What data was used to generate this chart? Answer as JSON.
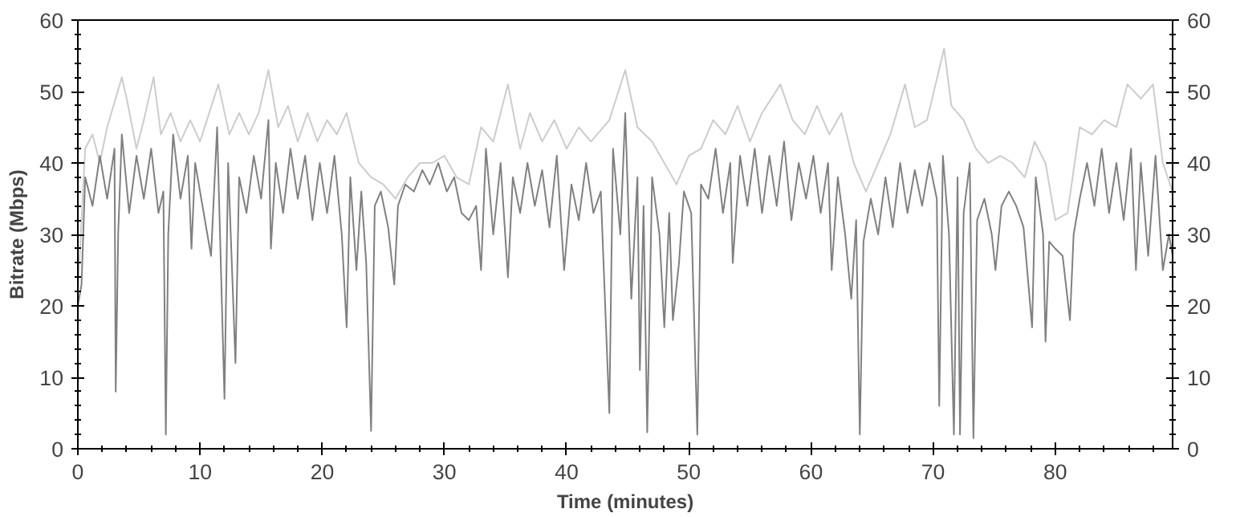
{
  "chart_data": {
    "type": "line",
    "xlabel": "Time (minutes)",
    "ylabel": "Bitrate (Mbps)",
    "xlim": [
      0,
      89.6
    ],
    "ylim": [
      0,
      60
    ],
    "xticks": [
      0,
      10,
      20,
      30,
      40,
      50,
      60,
      70,
      80
    ],
    "yticks": [
      0,
      10,
      20,
      30,
      40,
      50,
      60
    ],
    "y2lim": [
      0,
      60
    ],
    "y2ticks": [
      0,
      10,
      20,
      30,
      40,
      50,
      60
    ],
    "grid": false,
    "marker": "none",
    "line_style": "solid",
    "series": [
      {
        "color": "#cccccc",
        "x": [
          0,
          0.6,
          1.2,
          1.8,
          2.4,
          3.6,
          4.0,
          4.8,
          5.4,
          6.2,
          6.8,
          7.6,
          8.4,
          9.2,
          10.0,
          11.5,
          12.4,
          13.2,
          14.0,
          14.8,
          15.6,
          16.4,
          17.2,
          18.0,
          18.8,
          19.6,
          20.4,
          21.2,
          22.0,
          23.0,
          24.0,
          25.0,
          26.0,
          27.0,
          28.0,
          29.0,
          30.0,
          31.0,
          32.0,
          33.0,
          34.0,
          35.2,
          36.2,
          37.0,
          38.0,
          39.0,
          40.0,
          41.0,
          42.0,
          43.5,
          44.8,
          45.8,
          47.0,
          48.0,
          49.0,
          50.0,
          51.0,
          52.0,
          53.0,
          54.0,
          55.0,
          56.0,
          57.5,
          58.5,
          59.5,
          60.5,
          61.5,
          62.5,
          63.5,
          64.5,
          65.5,
          66.5,
          67.7,
          68.5,
          69.5,
          70.9,
          71.5,
          72.5,
          73.5,
          74.5,
          75.5,
          76.5,
          77.5,
          78.3,
          79.2,
          80.0,
          81.0,
          82.0,
          83.0,
          84.0,
          85.0,
          85.9,
          87.0,
          88.0,
          88.8,
          89.6
        ],
        "values": [
          22,
          42,
          44,
          40,
          45,
          52,
          49,
          42,
          46,
          52,
          44,
          47,
          43,
          46,
          43,
          51,
          44,
          47,
          44,
          47,
          53,
          45,
          48,
          43,
          47,
          43,
          46,
          44,
          47,
          40,
          38,
          37,
          35,
          38,
          40,
          40,
          41,
          38,
          37,
          45,
          43,
          51,
          42,
          47,
          43,
          46,
          42,
          45,
          43,
          46,
          53,
          45,
          43,
          40,
          37,
          41,
          42,
          46,
          44,
          48,
          43,
          47,
          51,
          46,
          44,
          48,
          44,
          47,
          40,
          36,
          40,
          44,
          51,
          45,
          46,
          56,
          48,
          46,
          42,
          40,
          41,
          40,
          38,
          43,
          40,
          32,
          33,
          45,
          44,
          46,
          45,
          51,
          49,
          51,
          40,
          36
        ]
      },
      {
        "color": "#808080",
        "x": [
          0,
          0.3,
          0.6,
          1.2,
          1.8,
          2.4,
          3.0,
          3.1,
          3.3,
          3.6,
          4.2,
          4.8,
          5.4,
          6.0,
          6.6,
          7.0,
          7.2,
          7.4,
          7.8,
          8.4,
          9.0,
          9.3,
          9.6,
          10.2,
          10.9,
          11.4,
          12.0,
          12.3,
          12.9,
          13.2,
          13.8,
          14.4,
          15.0,
          15.6,
          15.8,
          16.2,
          16.8,
          17.4,
          18.0,
          18.6,
          19.2,
          19.8,
          20.4,
          21.0,
          21.6,
          22.0,
          22.3,
          22.8,
          23.2,
          23.6,
          24.0,
          24.3,
          24.8,
          25.4,
          25.9,
          26.2,
          26.8,
          27.5,
          28.2,
          28.8,
          29.5,
          30.2,
          30.8,
          31.4,
          32.0,
          32.6,
          33.0,
          33.4,
          34.0,
          34.6,
          35.2,
          35.6,
          36.2,
          36.8,
          37.4,
          38.0,
          38.6,
          39.2,
          39.8,
          40.4,
          41.0,
          41.6,
          42.2,
          42.8,
          43.5,
          43.8,
          44.4,
          44.8,
          45.3,
          45.8,
          46.0,
          46.3,
          46.6,
          47.0,
          47.6,
          48.0,
          48.4,
          48.7,
          49.2,
          49.6,
          50.2,
          50.7,
          51.0,
          51.6,
          52.2,
          52.8,
          53.4,
          53.6,
          54.2,
          54.8,
          55.4,
          56.0,
          56.6,
          57.2,
          57.8,
          58.4,
          59.0,
          59.6,
          60.2,
          60.8,
          61.4,
          61.7,
          62.2,
          62.8,
          63.3,
          63.7,
          64.0,
          64.3,
          64.9,
          65.5,
          66.1,
          66.7,
          67.3,
          67.9,
          68.5,
          69.1,
          69.7,
          70.3,
          70.5,
          70.8,
          71.3,
          71.7,
          72.0,
          72.2,
          72.5,
          73.0,
          73.3,
          73.6,
          74.2,
          74.8,
          75.1,
          75.6,
          76.2,
          76.8,
          77.4,
          78.1,
          78.4,
          79.0,
          79.2,
          79.5,
          80.0,
          80.6,
          81.2,
          81.5,
          82.0,
          82.6,
          83.2,
          83.8,
          84.4,
          85.0,
          85.6,
          86.2,
          86.6,
          87.0,
          87.6,
          88.2,
          88.8,
          89.3,
          89.6
        ],
        "values": [
          20,
          23,
          38,
          34,
          41,
          35,
          42,
          8,
          30,
          44,
          33,
          41,
          35,
          42,
          33,
          36,
          2,
          30,
          44,
          35,
          41,
          28,
          40,
          34,
          27,
          45,
          7,
          40,
          12,
          38,
          33,
          41,
          35,
          46,
          28,
          40,
          33,
          42,
          35,
          41,
          32,
          40,
          33,
          41,
          30,
          17,
          38,
          25,
          36,
          26,
          2.5,
          34,
          36,
          31,
          23,
          34,
          37,
          36,
          39,
          37,
          40,
          36,
          38,
          33,
          32,
          34,
          25,
          42,
          30,
          40,
          24,
          38,
          33,
          40,
          34,
          39,
          31,
          41,
          25,
          37,
          32,
          40,
          33,
          36,
          5,
          42,
          30,
          47,
          21,
          38,
          11,
          34,
          2.3,
          38,
          30,
          17,
          33,
          18,
          26,
          36,
          33,
          2,
          37,
          35,
          42,
          33,
          40,
          26,
          41,
          34,
          42,
          33,
          41,
          34,
          43,
          32,
          40,
          35,
          41,
          33,
          40,
          25,
          38,
          30,
          21,
          32,
          2,
          29,
          35,
          30,
          38,
          31,
          40,
          33,
          39,
          34,
          40,
          35,
          6,
          41,
          30,
          2,
          38,
          2,
          33,
          40,
          1.5,
          32,
          35,
          30,
          25,
          34,
          36,
          34,
          31,
          17,
          38,
          30,
          15,
          29,
          28,
          27,
          18,
          30,
          35,
          40,
          34,
          42,
          33,
          40,
          32,
          42,
          25,
          40,
          27,
          41,
          25,
          30,
          27
        ]
      }
    ]
  }
}
